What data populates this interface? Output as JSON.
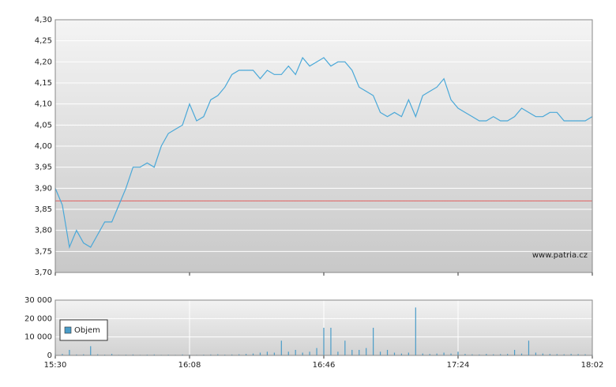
{
  "chart_data": [
    {
      "type": "line",
      "x": [
        "15:30",
        "15:32",
        "15:34",
        "15:36",
        "15:38",
        "15:40",
        "15:42",
        "15:44",
        "15:46",
        "15:48",
        "15:50",
        "15:52",
        "15:54",
        "15:56",
        "15:58",
        "16:00",
        "16:02",
        "16:04",
        "16:06",
        "16:08",
        "16:10",
        "16:12",
        "16:14",
        "16:16",
        "16:18",
        "16:20",
        "16:22",
        "16:24",
        "16:26",
        "16:28",
        "16:30",
        "16:32",
        "16:34",
        "16:36",
        "16:38",
        "16:40",
        "16:42",
        "16:44",
        "16:46",
        "16:48",
        "16:50",
        "16:52",
        "16:54",
        "16:56",
        "16:58",
        "17:00",
        "17:02",
        "17:04",
        "17:06",
        "17:08",
        "17:10",
        "17:12",
        "17:14",
        "17:16",
        "17:18",
        "17:20",
        "17:22",
        "17:24",
        "17:26",
        "17:28",
        "17:30",
        "17:32",
        "17:34",
        "17:36",
        "17:38",
        "17:40",
        "17:42",
        "17:44",
        "17:46",
        "17:48",
        "17:50",
        "17:52",
        "17:54",
        "17:56",
        "17:58",
        "18:00",
        "18:02"
      ],
      "xlim": [
        "15:30",
        "18:02"
      ],
      "series": [
        {
          "color": "#4aa8d8",
          "values": [
            3.9,
            3.86,
            3.76,
            3.8,
            3.77,
            3.76,
            3.79,
            3.82,
            3.82,
            3.86,
            3.9,
            3.95,
            3.95,
            3.96,
            3.95,
            4.0,
            4.03,
            4.04,
            4.05,
            4.1,
            4.06,
            4.07,
            4.11,
            4.12,
            4.14,
            4.17,
            4.18,
            4.18,
            4.18,
            4.16,
            4.18,
            4.17,
            4.17,
            4.19,
            4.17,
            4.21,
            4.19,
            4.2,
            4.21,
            4.19,
            4.2,
            4.2,
            4.18,
            4.14,
            4.13,
            4.12,
            4.08,
            4.07,
            4.08,
            4.07,
            4.11,
            4.07,
            4.12,
            4.13,
            4.14,
            4.16,
            4.11,
            4.09,
            4.08,
            4.07,
            4.06,
            4.06,
            4.07,
            4.06,
            4.06,
            4.07,
            4.09,
            4.08,
            4.07,
            4.07,
            4.08,
            4.08,
            4.06,
            4.06,
            4.06,
            4.06,
            4.07
          ]
        }
      ],
      "reference_line": {
        "value": 3.87,
        "color": "#e06060"
      },
      "ylim": [
        3.7,
        4.3
      ],
      "yticks": [
        {
          "value": 3.7,
          "label": "3,70"
        },
        {
          "value": 3.75,
          "label": "3,75"
        },
        {
          "value": 3.8,
          "label": "3,80"
        },
        {
          "value": 3.85,
          "label": "3,85"
        },
        {
          "value": 3.9,
          "label": "3,90"
        },
        {
          "value": 3.95,
          "label": "3,95"
        },
        {
          "value": 4.0,
          "label": "4,00"
        },
        {
          "value": 4.05,
          "label": "4,05"
        },
        {
          "value": 4.1,
          "label": "4,10"
        },
        {
          "value": 4.15,
          "label": "4,15"
        },
        {
          "value": 4.2,
          "label": "4,20"
        },
        {
          "value": 4.25,
          "label": "4,25"
        },
        {
          "value": 4.3,
          "label": "4,30"
        }
      ],
      "grid": true,
      "watermark": "www.patria.cz"
    },
    {
      "type": "bar",
      "x": [
        "15:30",
        "15:32",
        "15:34",
        "15:36",
        "15:38",
        "15:40",
        "15:42",
        "15:44",
        "15:46",
        "15:48",
        "15:50",
        "15:52",
        "15:54",
        "15:56",
        "15:58",
        "16:00",
        "16:02",
        "16:04",
        "16:06",
        "16:08",
        "16:10",
        "16:12",
        "16:14",
        "16:16",
        "16:18",
        "16:20",
        "16:22",
        "16:24",
        "16:26",
        "16:28",
        "16:30",
        "16:32",
        "16:34",
        "16:36",
        "16:38",
        "16:40",
        "16:42",
        "16:44",
        "16:46",
        "16:48",
        "16:50",
        "16:52",
        "16:54",
        "16:56",
        "16:58",
        "17:00",
        "17:02",
        "17:04",
        "17:06",
        "17:08",
        "17:10",
        "17:12",
        "17:14",
        "17:16",
        "17:18",
        "17:20",
        "17:22",
        "17:24",
        "17:26",
        "17:28",
        "17:30",
        "17:32",
        "17:34",
        "17:36",
        "17:38",
        "17:40",
        "17:42",
        "17:44",
        "17:46",
        "17:48",
        "17:50",
        "17:52",
        "17:54",
        "17:56",
        "17:58",
        "18:00",
        "18:02"
      ],
      "xlim": [
        "15:30",
        "18:02"
      ],
      "xticks": [
        "15:30",
        "16:08",
        "16:46",
        "17:24",
        "18:02"
      ],
      "series": [
        {
          "name": "Objem",
          "color": "#4a9cc8",
          "values": [
            1000,
            800,
            3000,
            500,
            600,
            5000,
            600,
            400,
            800,
            300,
            400,
            500,
            300,
            400,
            500,
            300,
            400,
            300,
            500,
            400,
            300,
            400,
            500,
            600,
            400,
            500,
            600,
            800,
            1000,
            1500,
            2000,
            1500,
            8000,
            2000,
            3000,
            1500,
            2000,
            4000,
            15000,
            15000,
            2000,
            8000,
            3000,
            3000,
            4000,
            15000,
            2000,
            3000,
            1500,
            1000,
            1500,
            26000,
            1000,
            800,
            1000,
            1500,
            1000,
            2000,
            800,
            600,
            500,
            800,
            600,
            700,
            800,
            3000,
            1000,
            8000,
            1500,
            1000,
            800,
            700,
            600,
            800,
            700,
            600,
            500
          ]
        }
      ],
      "ylim": [
        0,
        30000
      ],
      "yticks": [
        0,
        {
          "value": 10000,
          "label": "10 000"
        },
        {
          "value": 20000,
          "label": "20 000"
        },
        {
          "value": 30000,
          "label": "30 000"
        }
      ],
      "grid": true,
      "legend": "upper left"
    }
  ]
}
